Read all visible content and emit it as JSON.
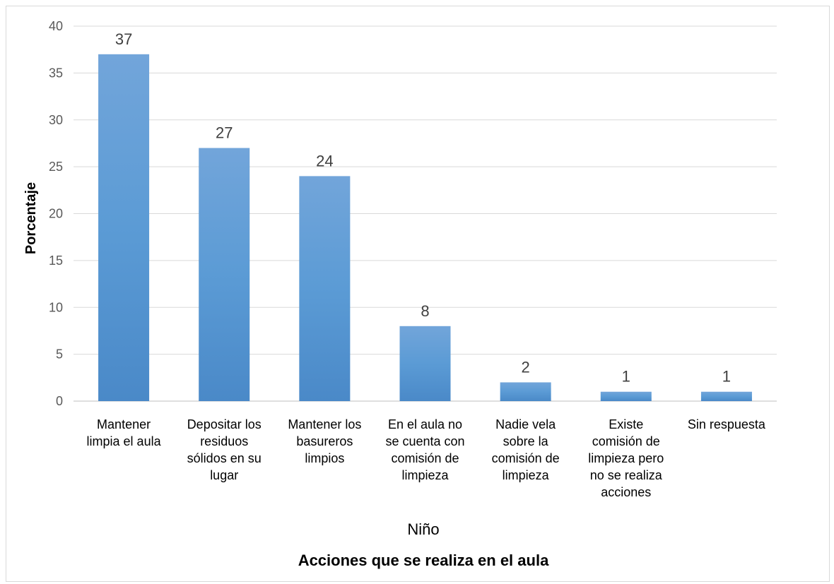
{
  "chart_data": {
    "type": "bar",
    "categories": [
      [
        "Mantener",
        "limpia el aula"
      ],
      [
        "Depositar los",
        "residuos",
        "sólidos en su",
        "lugar"
      ],
      [
        "Mantener los",
        "basureros",
        "limpios"
      ],
      [
        "En el aula no",
        "se cuenta con",
        "comisión de",
        "limpieza"
      ],
      [
        "Nadie vela",
        "sobre la",
        "comisión de",
        "limpieza"
      ],
      [
        "Existe",
        "comisión de",
        "limpieza pero",
        "no se realiza",
        "acciones"
      ],
      [
        "Sin respuesta"
      ]
    ],
    "values": [
      37,
      27,
      24,
      8,
      2,
      1,
      1
    ],
    "data_labels": [
      "37",
      "27",
      "24",
      "8",
      "2",
      "1",
      "1"
    ],
    "ylabel": "Porcentaje",
    "subtitle": "Niño",
    "xlabel": "Acciones que se realiza en el aula",
    "ylim": [
      0,
      40
    ],
    "yticks": [
      0,
      5,
      10,
      15,
      20,
      25,
      30,
      35,
      40
    ],
    "grid": true,
    "bar_color": "#5b9bd5"
  }
}
